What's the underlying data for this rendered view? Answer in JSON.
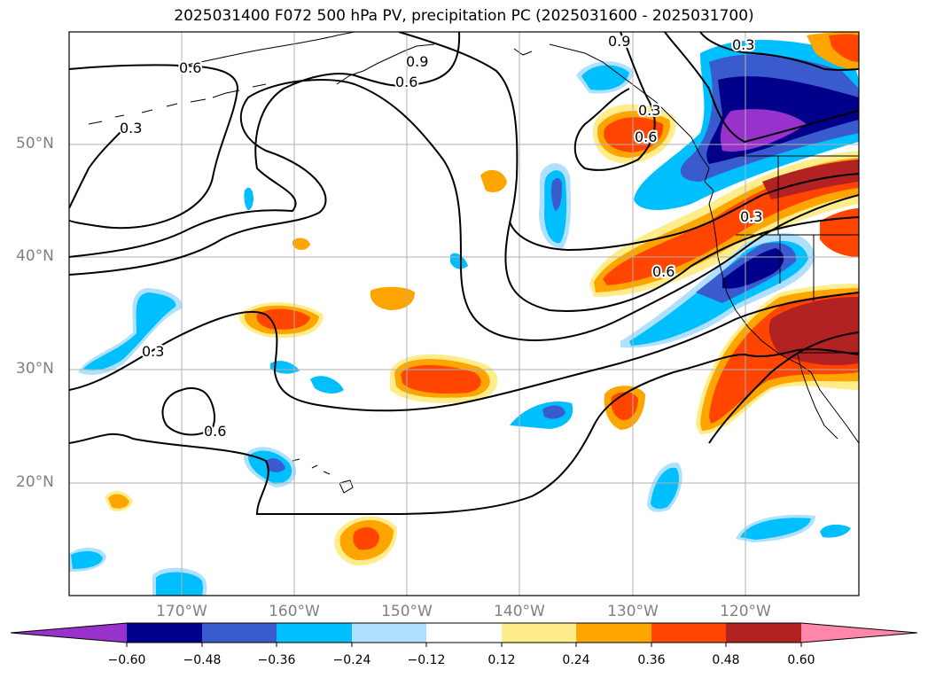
{
  "title": "2025031400 F072 500 hPa PV, precipitation PC (2025031600 - 2025031700)",
  "map": {
    "lat_labels": [
      "50°N",
      "40°N",
      "30°N",
      "20°N"
    ],
    "lon_labels": [
      "170°W",
      "160°W",
      "150°W",
      "140°W",
      "130°W",
      "120°W"
    ],
    "contour_labels": [
      "0.6",
      "0.9",
      "0.6",
      "0.3",
      "0.3",
      "0.6",
      "0.9",
      "0.3",
      "0.6",
      "0.3",
      "0.6",
      "0.3"
    ],
    "contour_levels": [
      0.3,
      0.6,
      0.9
    ]
  },
  "colorbar": {
    "ticks": [
      "−0.60",
      "−0.48",
      "−0.36",
      "−0.24",
      "−0.12",
      "0.12",
      "0.24",
      "0.36",
      "0.48",
      "0.60"
    ],
    "colors": [
      "#9932cc",
      "#00008b",
      "#3a5bcd",
      "#00bfff",
      "#b0e0ff",
      "#ffffff",
      "#ffec8b",
      "#ffa500",
      "#ff4500",
      "#b22222",
      "#ff88aa"
    ],
    "extend": "both"
  },
  "legend_colors": {
    "neg_extreme": "#9932cc",
    "neg4": "#00008b",
    "neg3": "#3a5bcd",
    "neg2": "#00bfff",
    "neg1": "#b0e0ff",
    "pos1": "#ffec8b",
    "pos2": "#ffa500",
    "pos3": "#ff4500",
    "pos4": "#b22222",
    "pos_extreme": "#ff88aa"
  }
}
